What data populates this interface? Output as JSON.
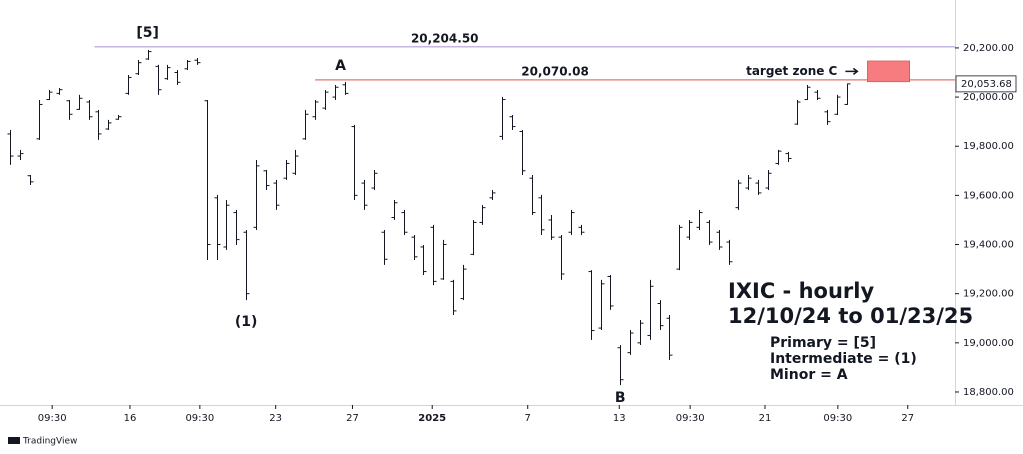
{
  "chart_data": {
    "type": "ohlc",
    "title": "IXIC - hourly",
    "subtitle": "12/10/24 to 01/23/25",
    "notes": [
      "Primary = [5]",
      "Intermediate = (1)",
      "Minor = A"
    ],
    "annotations": [
      "[5]",
      "A",
      "(1)",
      "B"
    ],
    "brand": "TradingView",
    "x": [
      1,
      2,
      3,
      4,
      5,
      6,
      7,
      8,
      9,
      10,
      11,
      12,
      13,
      14,
      15,
      16,
      17,
      18,
      19,
      20,
      21,
      22,
      23,
      24,
      25,
      26,
      27,
      28,
      29,
      30,
      31,
      32,
      33,
      34,
      35,
      36,
      37,
      38,
      39,
      40,
      41,
      42,
      43,
      44,
      45,
      46,
      47,
      48,
      49,
      50,
      51,
      52,
      53,
      54,
      55,
      56,
      57,
      58,
      59,
      60,
      61,
      62,
      63,
      64,
      65,
      66,
      67,
      68,
      69,
      70,
      71,
      72,
      73,
      74,
      75,
      76,
      77,
      78,
      79,
      80,
      81,
      82,
      83,
      84,
      85,
      86
    ],
    "open": [
      19850,
      19760,
      19680,
      19830,
      19990,
      20015,
      19985,
      19950,
      19980,
      19940,
      19870,
      19910,
      20015,
      20095,
      20155,
      20125,
      20075,
      20100,
      20115,
      20150,
      19985,
      19590,
      19390,
      19530,
      19450,
      19470,
      19700,
      19650,
      19670,
      19690,
      19830,
      19920,
      19955,
      20000,
      20050,
      19880,
      19650,
      19630,
      19450,
      19510,
      19530,
      19430,
      19390,
      19470,
      19260,
      19250,
      19180,
      19360,
      19490,
      19590,
      19840,
      19920,
      19860,
      19670,
      19590,
      19500,
      19430,
      19450,
      19470,
      19290,
      19060,
      19270,
      18980,
      18960,
      19000,
      19030,
      19160,
      19100,
      19300,
      19430,
      19470,
      19490,
      19450,
      19410,
      19550,
      19630,
      19650,
      19630,
      19730,
      19770,
      19890,
      19990,
      20020,
      19940,
      19930,
      19970
    ],
    "high": [
      19866,
      19785,
      19683,
      19988,
      20029,
      20037,
      19988,
      20009,
      19988,
      19948,
      19907,
      19927,
      20090,
      20151,
      20192,
      20131,
      20131,
      20110,
      20151,
      20159,
      19988,
      19602,
      19581,
      19541,
      19459,
      19744,
      19703,
      19663,
      19744,
      19785,
      19948,
      19988,
      20029,
      20049,
      20062,
      19887,
      19663,
      19703,
      19459,
      19581,
      19541,
      19439,
      19398,
      19480,
      19419,
      19256,
      19317,
      19500,
      19561,
      19622,
      20001,
      19927,
      19866,
      19683,
      19602,
      19520,
      19439,
      19541,
      19480,
      19296,
      19256,
      19276,
      18991,
      19052,
      19093,
      19256,
      19174,
      19113,
      19480,
      19500,
      19541,
      19500,
      19459,
      19419,
      19663,
      19683,
      19663,
      19703,
      19785,
      19777,
      19988,
      20049,
      20029,
      19948,
      20009,
      20055
    ],
    "low": [
      19724,
      19744,
      19642,
      19826,
      19988,
      20009,
      19907,
      19948,
      19907,
      19826,
      19866,
      19907,
      20009,
      20090,
      20151,
      20009,
      20070,
      20049,
      20110,
      20131,
      19337,
      19337,
      19378,
      19398,
      19174,
      19459,
      19622,
      19541,
      19663,
      19683,
      19826,
      19907,
      19948,
      19988,
      20009,
      19581,
      19541,
      19622,
      19317,
      19500,
      19439,
      19337,
      19276,
      19235,
      19256,
      19113,
      19174,
      19357,
      19480,
      19581,
      19826,
      19866,
      19683,
      19520,
      19439,
      19419,
      19256,
      19439,
      19439,
      19012,
      19052,
      19134,
      18828,
      18951,
      18991,
      19012,
      19052,
      18930,
      19296,
      19419,
      19459,
      19398,
      19378,
      19317,
      19541,
      19622,
      19602,
      19622,
      19724,
      19736,
      19887,
      19988,
      19988,
      19887,
      19927,
      19968
    ],
    "close": [
      19760,
      19770,
      19655,
      19970,
      20020,
      20030,
      19930,
      19995,
      19920,
      19850,
      19895,
      19920,
      20080,
      20140,
      20185,
      20030,
      20120,
      20060,
      20145,
      20140,
      19400,
      19400,
      19560,
      19420,
      19200,
      19720,
      19640,
      19560,
      19730,
      19760,
      19930,
      19980,
      20020,
      20040,
      20015,
      19600,
      19560,
      19690,
      19340,
      19570,
      19450,
      19350,
      19290,
      19250,
      19400,
      19130,
      19300,
      19490,
      19550,
      19610,
      19990,
      19880,
      19700,
      19530,
      19460,
      19430,
      19280,
      19530,
      19450,
      19050,
      19240,
      19150,
      18850,
      19040,
      19080,
      19230,
      19070,
      18950,
      19470,
      19490,
      19530,
      19410,
      19390,
      19330,
      19650,
      19670,
      19610,
      19690,
      19780,
      19750,
      19980,
      20040,
      19995,
      19900,
      20000,
      20053.68
    ],
    "last_price_label": "20,053.68",
    "color": "#131722",
    "levels": [
      {
        "value": 20204.5,
        "label": "20,204.50",
        "color": "#b39ddb",
        "from_x": 9.6
      },
      {
        "value": 20070.08,
        "label": "20,070.08",
        "color": "#e57373",
        "from_x": 32
      }
    ],
    "target_zone": {
      "label": "target zone C",
      "x": [
        88.1,
        92.4
      ],
      "y": [
        20062,
        20147
      ],
      "color": "#f77c80"
    },
    "xlim": [
      0,
      97
    ],
    "xticks": [
      {
        "value": 5.3,
        "label": "09:30"
      },
      {
        "value": 13.2,
        "label": "16"
      },
      {
        "value": 20.3,
        "label": "09:30"
      },
      {
        "value": 28,
        "label": "23"
      },
      {
        "value": 35.8,
        "label": "27"
      },
      {
        "value": 43.9,
        "label": "2025"
      },
      {
        "value": 53.6,
        "label": "7"
      },
      {
        "value": 62.9,
        "label": "13"
      },
      {
        "value": 70.1,
        "label": "09:30"
      },
      {
        "value": 77.7,
        "label": "21"
      },
      {
        "value": 85.1,
        "label": "09:30"
      },
      {
        "value": 92.2,
        "label": "27"
      }
    ],
    "ylim": [
      18747,
      20395
    ],
    "yticks": [
      {
        "value": 18800,
        "label": "18,800.00"
      },
      {
        "value": 19000,
        "label": "19,000.00"
      },
      {
        "value": 19200,
        "label": "19,200.00"
      },
      {
        "value": 19400,
        "label": "19,400.00"
      },
      {
        "value": 19600,
        "label": "19,600.00"
      },
      {
        "value": 19800,
        "label": "19,800.00"
      },
      {
        "value": 20000,
        "label": "20,000.00"
      },
      {
        "value": 20200,
        "label": "20,200.00"
      }
    ],
    "grid": false
  }
}
